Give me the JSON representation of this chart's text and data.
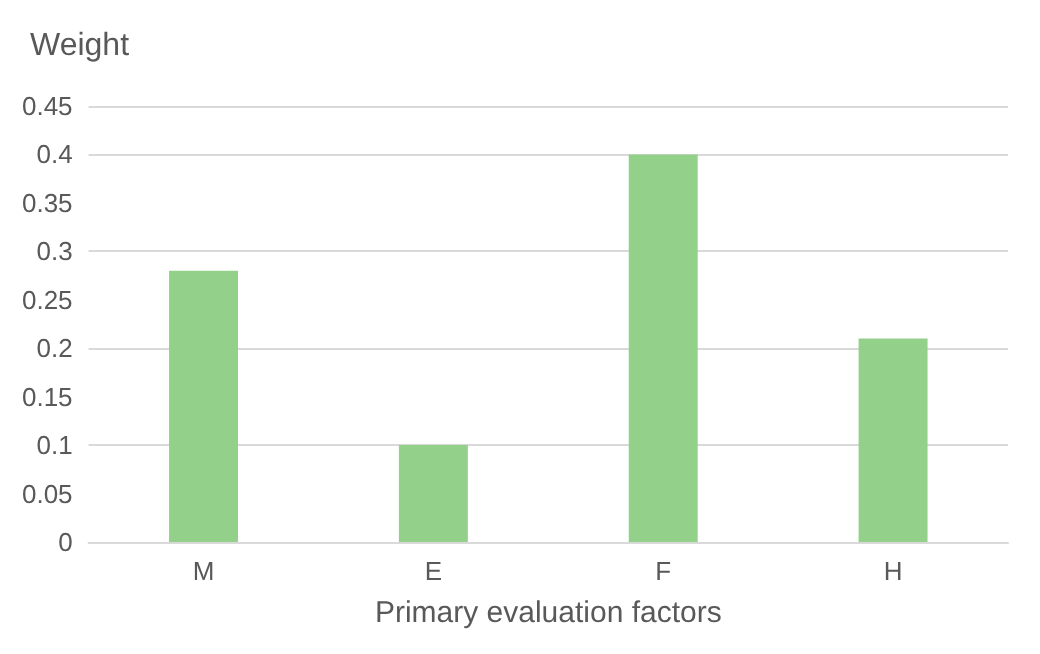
{
  "chart_data": {
    "type": "bar",
    "ylabel": "Weight",
    "xlabel": "Primary evaluation factors",
    "categories": [
      "M",
      "E",
      "F",
      "H"
    ],
    "values": [
      0.28,
      0.1,
      0.4,
      0.21
    ],
    "color": "#93d18a",
    "ylim": [
      0,
      0.45
    ],
    "yticks": [
      0,
      0.05,
      0.1,
      0.15,
      0.2,
      0.25,
      0.3,
      0.35,
      0.4,
      0.45
    ],
    "grid": "y"
  }
}
